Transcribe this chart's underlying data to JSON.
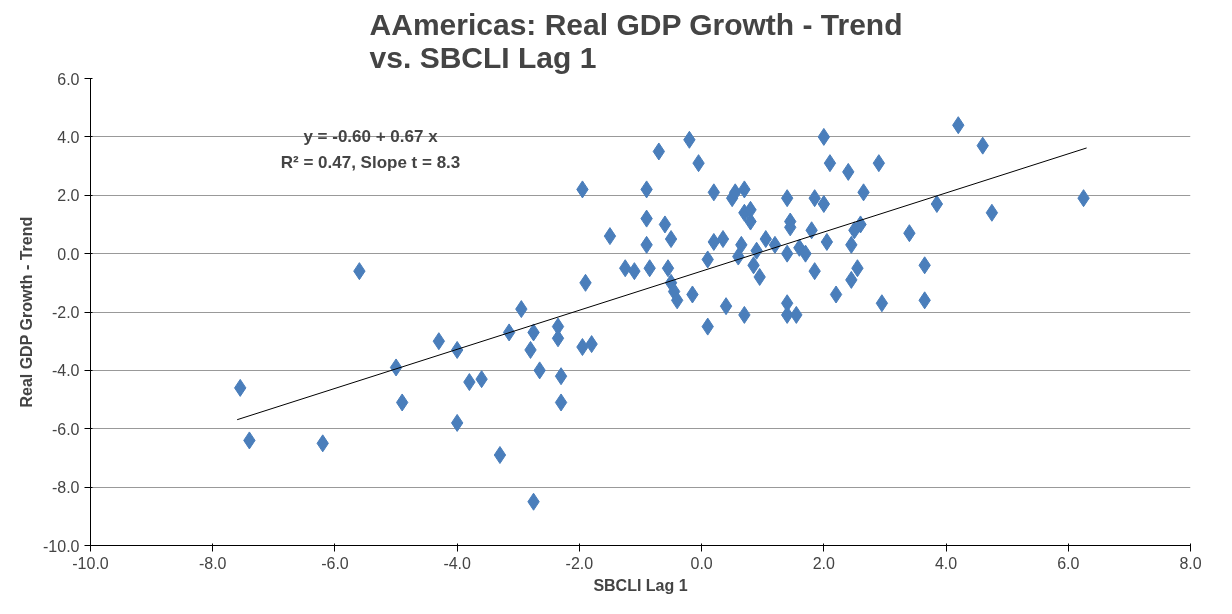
{
  "chart_data": {
    "type": "scatter",
    "title": "AAmericas:  Real GDP Growth - Trend\nvs. SBCLI Lag 1",
    "xlabel": "SBCLI Lag 1",
    "ylabel": "Real GDP Growth - Trend",
    "annotations": [
      "y = -0.60 + 0.67 x",
      "R² = 0.47, Slope t = 8.3"
    ],
    "xlim": [
      -10,
      8
    ],
    "xticks": [
      {
        "value": -10,
        "label": "-10.0"
      },
      {
        "value": -8,
        "label": "-8.0"
      },
      {
        "value": -6,
        "label": "-6.0"
      },
      {
        "value": -4,
        "label": "-4.0"
      },
      {
        "value": -2,
        "label": "-2.0"
      },
      {
        "value": 0,
        "label": "0.0"
      },
      {
        "value": 2,
        "label": "2.0"
      },
      {
        "value": 4,
        "label": "4.0"
      },
      {
        "value": 6,
        "label": "6.0"
      },
      {
        "value": 8,
        "label": "8.0"
      }
    ],
    "ylim": [
      -10,
      6
    ],
    "yticks": [
      {
        "value": -10,
        "label": "-10.0"
      },
      {
        "value": -8,
        "label": "-8.0"
      },
      {
        "value": -6,
        "label": "-6.0"
      },
      {
        "value": -4,
        "label": "-4.0"
      },
      {
        "value": -2,
        "label": "-2.0"
      },
      {
        "value": 0,
        "label": "0.0"
      },
      {
        "value": 2,
        "label": "2.0"
      },
      {
        "value": 4,
        "label": "4.0"
      },
      {
        "value": 6,
        "label": "6.0"
      }
    ],
    "grid": "y",
    "series": [
      {
        "marker": "diamond",
        "color": "#4a7ebb",
        "x": [
          -7.55,
          -7.4,
          -6.2,
          -5.6,
          -5.0,
          -4.9,
          -4.3,
          -4.0,
          -4.0,
          -3.8,
          -3.6,
          -3.3,
          -3.15,
          -2.95,
          -2.8,
          -2.75,
          -2.65,
          -2.75,
          -2.35,
          -2.35,
          -2.3,
          -2.3,
          -1.95,
          -1.8,
          -1.9,
          -1.95,
          -1.5,
          -1.25,
          -1.1,
          -0.9,
          -0.9,
          -0.9,
          -0.85,
          -0.7,
          -0.6,
          -0.5,
          -0.55,
          -0.5,
          -0.45,
          -0.4,
          -0.2,
          -0.05,
          -0.15,
          0.1,
          0.1,
          0.2,
          0.2,
          0.35,
          0.4,
          0.5,
          0.55,
          0.6,
          0.65,
          0.7,
          0.7,
          0.8,
          0.7,
          0.8,
          0.85,
          0.9,
          0.95,
          1.05,
          1.2,
          1.4,
          1.4,
          1.4,
          1.45,
          1.45,
          1.4,
          1.55,
          1.6,
          1.7,
          1.8,
          1.85,
          1.85,
          2.0,
          2.0,
          2.05,
          2.1,
          2.2,
          2.4,
          2.45,
          2.45,
          2.5,
          2.55,
          2.6,
          2.65,
          2.9,
          2.95,
          3.4,
          3.65,
          3.65,
          3.85,
          4.2,
          4.6,
          4.75,
          6.25
        ],
        "values": [
          -4.6,
          -6.4,
          -6.5,
          -0.6,
          -3.9,
          -5.1,
          -3.0,
          -3.3,
          -5.8,
          -4.4,
          -4.3,
          -6.9,
          -2.7,
          -1.9,
          -3.3,
          -2.7,
          -4.0,
          -8.5,
          -2.5,
          -2.9,
          -4.2,
          -5.1,
          -3.2,
          -3.1,
          -1.0,
          2.2,
          0.6,
          -0.5,
          -0.6,
          2.2,
          1.2,
          0.3,
          -0.5,
          3.5,
          1.0,
          0.5,
          -0.5,
          -1.0,
          -1.3,
          -1.6,
          3.9,
          3.1,
          -1.4,
          -0.2,
          -2.5,
          2.1,
          0.4,
          0.5,
          -1.8,
          1.9,
          2.1,
          -0.1,
          0.3,
          2.2,
          1.4,
          1.1,
          -2.1,
          1.5,
          -0.4,
          0.1,
          -0.8,
          0.5,
          0.3,
          1.9,
          -2.1,
          -1.7,
          1.1,
          0.9,
          0.0,
          -2.1,
          0.2,
          0.0,
          0.8,
          -0.6,
          1.9,
          4.0,
          1.7,
          0.4,
          3.1,
          -1.4,
          2.8,
          0.3,
          -0.9,
          0.8,
          -0.5,
          1.0,
          2.1,
          3.1,
          -1.7,
          0.7,
          -0.4,
          -1.6,
          1.7,
          4.4,
          3.7,
          1.4,
          1.9
        ]
      },
      {
        "type": "line",
        "marker": "none",
        "color": "#000000",
        "x": [
          -7.6,
          6.3
        ],
        "values": [
          -5.69,
          3.62
        ]
      }
    ]
  }
}
